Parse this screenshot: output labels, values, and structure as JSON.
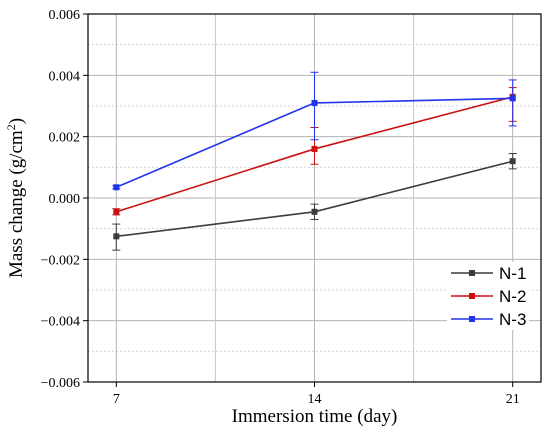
{
  "chart_data": {
    "type": "line",
    "xlabel": "Immersion time (day)",
    "ylabel": {
      "prefix": "Mass change (g/cm",
      "sup": "2",
      "suffix": ")"
    },
    "x": [
      7,
      14,
      21
    ],
    "x_ticks": [
      "7",
      "14",
      "21"
    ],
    "xlim": [
      6,
      22
    ],
    "ylim": [
      -0.006,
      0.006
    ],
    "y_ticks": [
      -0.006,
      -0.004,
      -0.002,
      0.0,
      0.002,
      0.004,
      0.006
    ],
    "y_tick_labels": [
      "−0.006",
      "−0.004",
      "−0.002",
      "0.000",
      "0.002",
      "0.004",
      "0.006"
    ],
    "grid": true,
    "legend_position": "bottom-right",
    "series": [
      {
        "name": "N-1",
        "color": "#3c3c3c",
        "values": [
          -0.00125,
          -0.00045,
          0.0012
        ],
        "error_low": [
          0.00045,
          0.00025,
          0.00025
        ],
        "error_high": [
          0.0004,
          0.00025,
          0.00025
        ]
      },
      {
        "name": "N-2",
        "color": "#cc1111",
        "values": [
          -0.00045,
          0.0016,
          0.0033
        ],
        "error_low": [
          0.0001,
          0.0005,
          0.0008
        ],
        "error_high": [
          0.0001,
          0.0007,
          0.0003
        ]
      },
      {
        "name": "N-3",
        "color": "#2233ee",
        "values": [
          0.00035,
          0.0031,
          0.00325
        ],
        "error_low": [
          5e-05,
          0.0012,
          0.0009
        ],
        "error_high": [
          5e-05,
          0.001,
          0.0006
        ]
      }
    ]
  }
}
